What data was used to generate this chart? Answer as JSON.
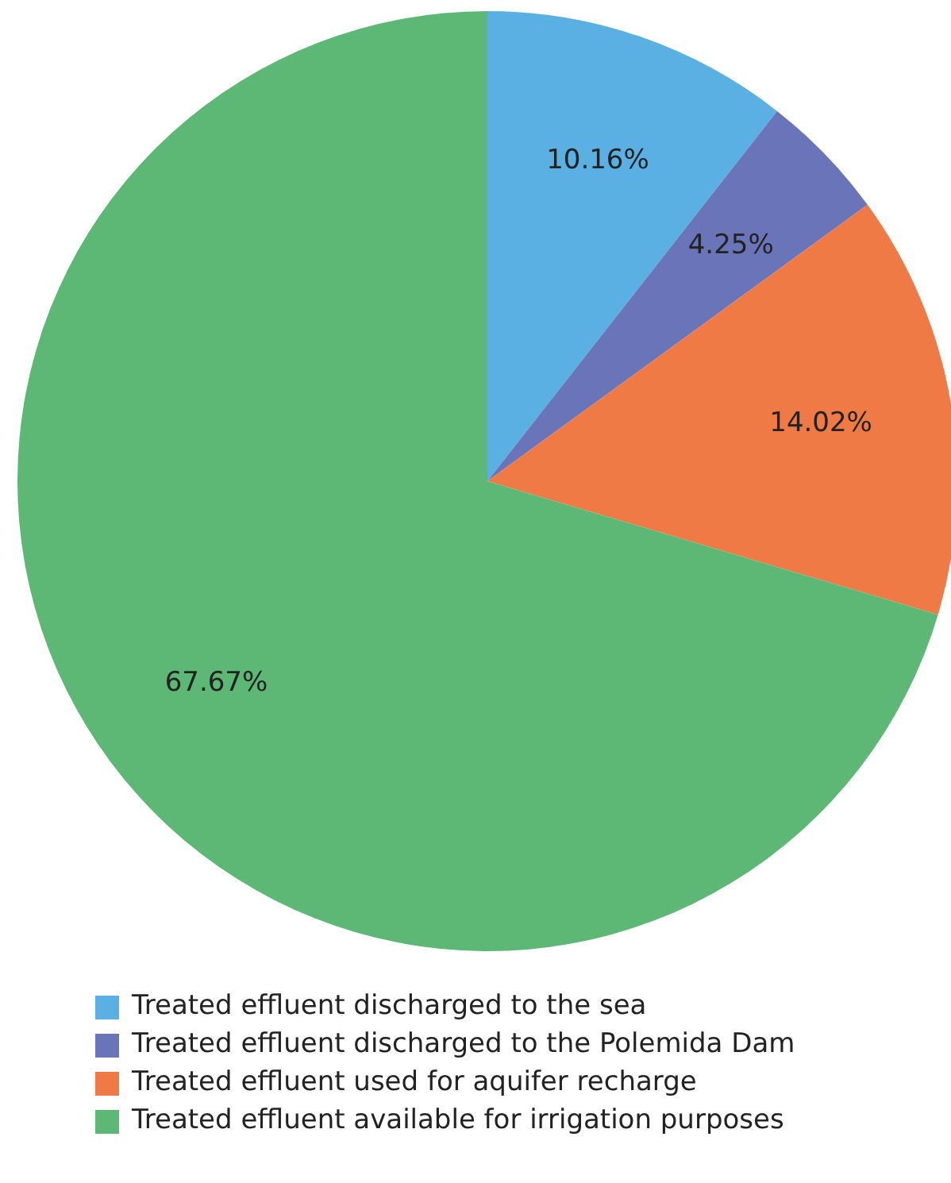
{
  "chart_data": {
    "type": "pie",
    "categories": [
      "Treated effluent discharged to the sea",
      "Treated effluent discharged to the Polemida Dam",
      "Treated effluent used for aquifer recharge",
      "Treated effluent available for irrigation purposes"
    ],
    "values": [
      10.16,
      4.25,
      14.02,
      67.67
    ],
    "colors": [
      "#5ab0e3",
      "#6a74b8",
      "#ef7a45",
      "#5db876"
    ],
    "value_labels": [
      "10.16%",
      "4.25%",
      "14.02%",
      "67.67%"
    ],
    "legend": "bottom"
  }
}
